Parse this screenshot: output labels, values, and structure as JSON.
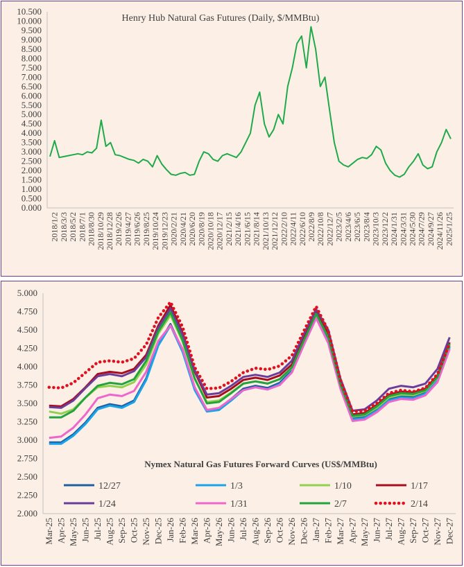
{
  "chart_data": [
    {
      "type": "line",
      "title": "Henry Hub Natural Gas Futures (Daily, $/MMBtu)",
      "ylim": [
        0,
        10.5
      ],
      "yticks": [
        "0.000",
        "0.500",
        "1.000",
        "1.500",
        "2.000",
        "2.500",
        "3.000",
        "3.500",
        "4.000",
        "4.500",
        "5.000",
        "5.500",
        "6.000",
        "6.500",
        "7.000",
        "7.500",
        "8.000",
        "8.500",
        "9.000",
        "9.500",
        "10.000",
        "10.500"
      ],
      "xticks": [
        "2018/1/2",
        "2018/3/3",
        "2018/5/2",
        "2018/7/1",
        "2018/8/30",
        "2018/10/29",
        "2018/12/28",
        "2019/2/26",
        "2019/4/27",
        "2019/6/26",
        "2019/8/25",
        "2019/10/24",
        "2019/12/23",
        "2020/2/21",
        "2020/4/21",
        "2020/6/20",
        "2020/8/19",
        "2020/10/18",
        "2020/12/17",
        "2021/2/15",
        "2021/4/16",
        "2021/6/15",
        "2021/8/14",
        "2021/10/13",
        "2021/12/12",
        "2022/2/10",
        "2022/4/11",
        "2022/6/10",
        "2022/8/9",
        "2022/10/8",
        "2022/12/7",
        "2023/2/5",
        "2023/4/6",
        "2023/6/5",
        "2023/8/4",
        "2023/10/3",
        "2023/12/2",
        "2024/1/31",
        "2024/3/31",
        "2024/5/30",
        "2024/7/29",
        "2024/9/27",
        "2024/11/26",
        "2025/1/25"
      ],
      "grid": false,
      "color": "#1faa4a",
      "series": [
        {
          "values": [
            2.75,
            3.6,
            2.7,
            2.75,
            2.8,
            2.85,
            2.9,
            2.85,
            3.0,
            2.95,
            3.2,
            4.7,
            3.3,
            3.5,
            2.85,
            2.8,
            2.7,
            2.6,
            2.55,
            2.4,
            2.6,
            2.5,
            2.2,
            2.8,
            2.35,
            2.05,
            1.8,
            1.75,
            1.85,
            1.9,
            1.75,
            1.8,
            2.5,
            3.0,
            2.9,
            2.6,
            2.5,
            2.8,
            2.9,
            2.8,
            2.7,
            3.0,
            3.5,
            4.0,
            5.5,
            6.2,
            4.5,
            3.8,
            4.2,
            5.0,
            4.5,
            6.5,
            7.5,
            8.8,
            9.2,
            7.5,
            9.7,
            8.5,
            6.5,
            7.0,
            5.2,
            3.5,
            2.5,
            2.3,
            2.2,
            2.4,
            2.6,
            2.7,
            2.65,
            2.85,
            3.3,
            3.1,
            2.4,
            2.0,
            1.75,
            1.65,
            1.8,
            2.2,
            2.5,
            2.9,
            2.3,
            2.1,
            2.2,
            3.0,
            3.5,
            4.2,
            3.7
          ]
        }
      ]
    },
    {
      "type": "line",
      "title": "Nymex Natural Gas Futures Forward Curves (US$/MMBtu)",
      "ylim": [
        2.0,
        5.0
      ],
      "yticks": [
        "2.000",
        "2.250",
        "2.500",
        "2.750",
        "3.000",
        "3.250",
        "3.500",
        "3.750",
        "4.000",
        "4.250",
        "4.500",
        "4.750",
        "5.000"
      ],
      "categories": [
        "Mar-25",
        "Apr-25",
        "May-25",
        "Jun-25",
        "Jul-25",
        "Aug-25",
        "Sep-25",
        "Oct-25",
        "Nov-25",
        "Dec-25",
        "Jan-26",
        "Feb-26",
        "Mar-26",
        "Apr-26",
        "May-26",
        "Jun-26",
        "Jul-26",
        "Aug-26",
        "Sep-26",
        "Oct-26",
        "Nov-26",
        "Dec-26",
        "Jan-27",
        "Feb-27",
        "Mar-27",
        "Apr-27",
        "May-27",
        "Jun-27",
        "Jul-27",
        "Aug-27",
        "Sep-27",
        "Oct-27",
        "Nov-27",
        "Dec-27"
      ],
      "legend_position": "bottom",
      "series": [
        {
          "name": "12/27",
          "color": "#1f5fa0",
          "dash": "solid",
          "values": [
            2.97,
            2.97,
            3.08,
            3.24,
            3.44,
            3.49,
            3.46,
            3.54,
            3.84,
            4.31,
            4.58,
            4.22,
            3.7,
            3.41,
            3.43,
            3.56,
            3.7,
            3.74,
            3.71,
            3.78,
            3.95,
            4.32,
            4.68,
            4.35,
            3.74,
            3.3,
            3.32,
            3.42,
            3.56,
            3.6,
            3.59,
            3.65,
            3.83,
            4.28
          ]
        },
        {
          "name": "1/3",
          "color": "#1aa3e8",
          "dash": "solid",
          "values": [
            2.95,
            2.95,
            3.06,
            3.22,
            3.42,
            3.47,
            3.44,
            3.52,
            3.82,
            4.29,
            4.56,
            4.2,
            3.68,
            3.39,
            3.41,
            3.54,
            3.68,
            3.72,
            3.69,
            3.76,
            3.93,
            4.3,
            4.66,
            4.33,
            3.72,
            3.28,
            3.3,
            3.4,
            3.54,
            3.58,
            3.57,
            3.63,
            3.81,
            4.26
          ]
        },
        {
          "name": "1/10",
          "color": "#92d050",
          "dash": "solid",
          "values": [
            3.39,
            3.36,
            3.42,
            3.58,
            3.72,
            3.74,
            3.72,
            3.79,
            4.03,
            4.45,
            4.7,
            4.34,
            3.83,
            3.52,
            3.54,
            3.65,
            3.77,
            3.8,
            3.77,
            3.83,
            3.98,
            4.35,
            4.71,
            4.4,
            3.76,
            3.32,
            3.34,
            3.44,
            3.58,
            3.62,
            3.61,
            3.67,
            3.85,
            4.3
          ]
        },
        {
          "name": "1/17",
          "color": "#a80d1e",
          "dash": "solid",
          "values": [
            3.47,
            3.46,
            3.56,
            3.72,
            3.9,
            3.93,
            3.91,
            3.97,
            4.16,
            4.56,
            4.84,
            4.46,
            3.93,
            3.58,
            3.6,
            3.7,
            3.82,
            3.85,
            3.82,
            3.88,
            4.03,
            4.4,
            4.76,
            4.45,
            3.8,
            3.35,
            3.37,
            3.48,
            3.62,
            3.66,
            3.65,
            3.7,
            3.88,
            4.33
          ]
        },
        {
          "name": "1/24",
          "color": "#6a3d9a",
          "dash": "solid",
          "values": [
            3.45,
            3.44,
            3.54,
            3.71,
            3.87,
            3.9,
            3.87,
            3.94,
            4.13,
            4.53,
            4.79,
            4.43,
            3.95,
            3.62,
            3.64,
            3.74,
            3.86,
            3.89,
            3.86,
            3.92,
            4.08,
            4.45,
            4.78,
            4.5,
            3.84,
            3.4,
            3.42,
            3.54,
            3.7,
            3.74,
            3.72,
            3.77,
            3.97,
            4.4
          ]
        },
        {
          "name": "1/31",
          "color": "#ee66cc",
          "dash": "solid",
          "values": [
            3.03,
            3.05,
            3.17,
            3.35,
            3.57,
            3.62,
            3.6,
            3.67,
            3.93,
            4.35,
            4.56,
            4.24,
            3.72,
            3.41,
            3.44,
            3.56,
            3.68,
            3.72,
            3.69,
            3.75,
            3.92,
            4.3,
            4.66,
            4.32,
            3.7,
            3.26,
            3.28,
            3.38,
            3.52,
            3.56,
            3.55,
            3.61,
            3.79,
            4.24
          ]
        },
        {
          "name": "2/7",
          "color": "#22a33d",
          "dash": "solid",
          "values": [
            3.31,
            3.31,
            3.4,
            3.58,
            3.74,
            3.78,
            3.76,
            3.83,
            4.08,
            4.48,
            4.74,
            4.36,
            3.84,
            3.5,
            3.52,
            3.64,
            3.77,
            3.8,
            3.77,
            3.83,
            3.99,
            4.36,
            4.72,
            4.4,
            3.76,
            3.33,
            3.35,
            3.46,
            3.6,
            3.64,
            3.63,
            3.68,
            3.86,
            4.31
          ]
        },
        {
          "name": "2/14",
          "color": "#e0101e",
          "dash": "dotted",
          "values": [
            3.72,
            3.71,
            3.78,
            3.92,
            4.06,
            4.08,
            4.06,
            4.11,
            4.3,
            4.67,
            4.88,
            4.54,
            3.99,
            3.7,
            3.71,
            3.8,
            3.92,
            3.98,
            3.96,
            4.01,
            4.15,
            4.49,
            4.82,
            4.49,
            3.82,
            3.39,
            3.4,
            3.5,
            3.64,
            3.68,
            3.66,
            3.71,
            3.9,
            4.32
          ]
        }
      ]
    }
  ]
}
